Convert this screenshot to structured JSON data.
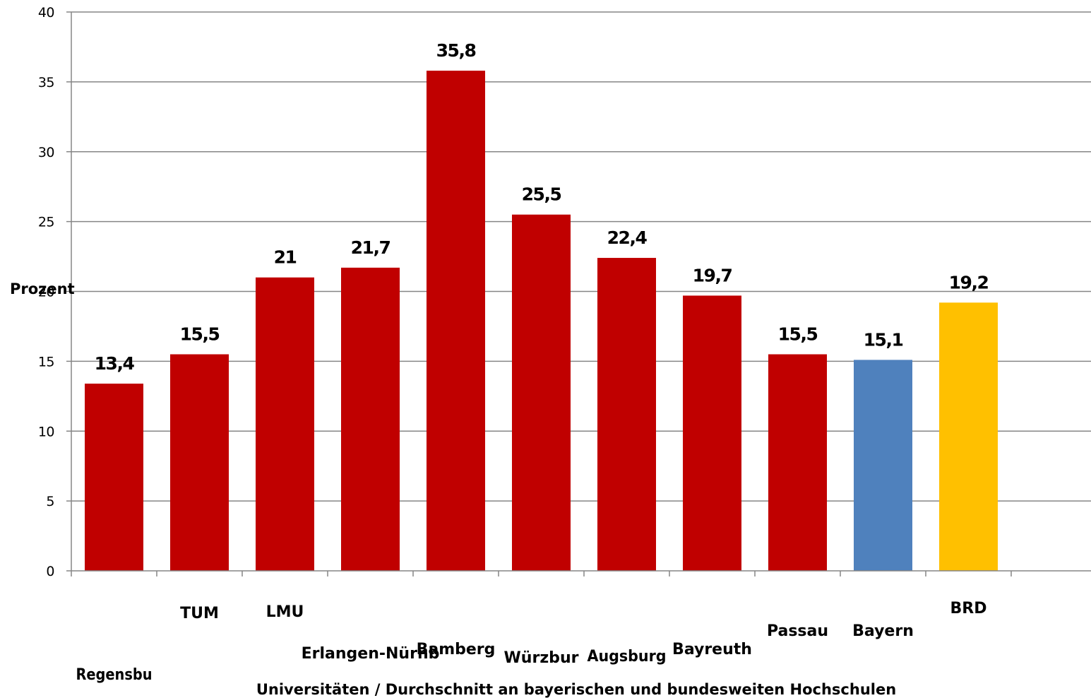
{
  "chart_data": {
    "type": "bar",
    "ylabel": "Prozent",
    "xlabel": "Universitäten / Durchschnitt an bayerischen und bundesweiten Hochschulen",
    "ylim": [
      0,
      40
    ],
    "yticks": [
      "0",
      "5",
      "10",
      "15",
      "20",
      "25",
      "30",
      "35",
      "40"
    ],
    "grid": true,
    "categories": [
      "Regensbu",
      "TUM",
      "LMU",
      "Erlangen-Nürnb",
      "Bamberg",
      "Würzbur",
      "Augsburg",
      "Bayreuth",
      "Passau",
      "Bayern",
      "BRD"
    ],
    "values": [
      13.4,
      15.5,
      21,
      21.7,
      35.8,
      25.5,
      22.4,
      19.7,
      15.5,
      15.1,
      19.2
    ],
    "data_labels": [
      "13,4",
      "15,5",
      "21",
      "21,7",
      "35,8",
      "25,5",
      "22,4",
      "19,7",
      "15,5",
      "15,1",
      "19,2"
    ],
    "colors": [
      "#c00000",
      "#c00000",
      "#c00000",
      "#c00000",
      "#c00000",
      "#c00000",
      "#c00000",
      "#c00000",
      "#c00000",
      "#4f81bd",
      "#ffc000"
    ],
    "gridline_color": "#868686"
  }
}
